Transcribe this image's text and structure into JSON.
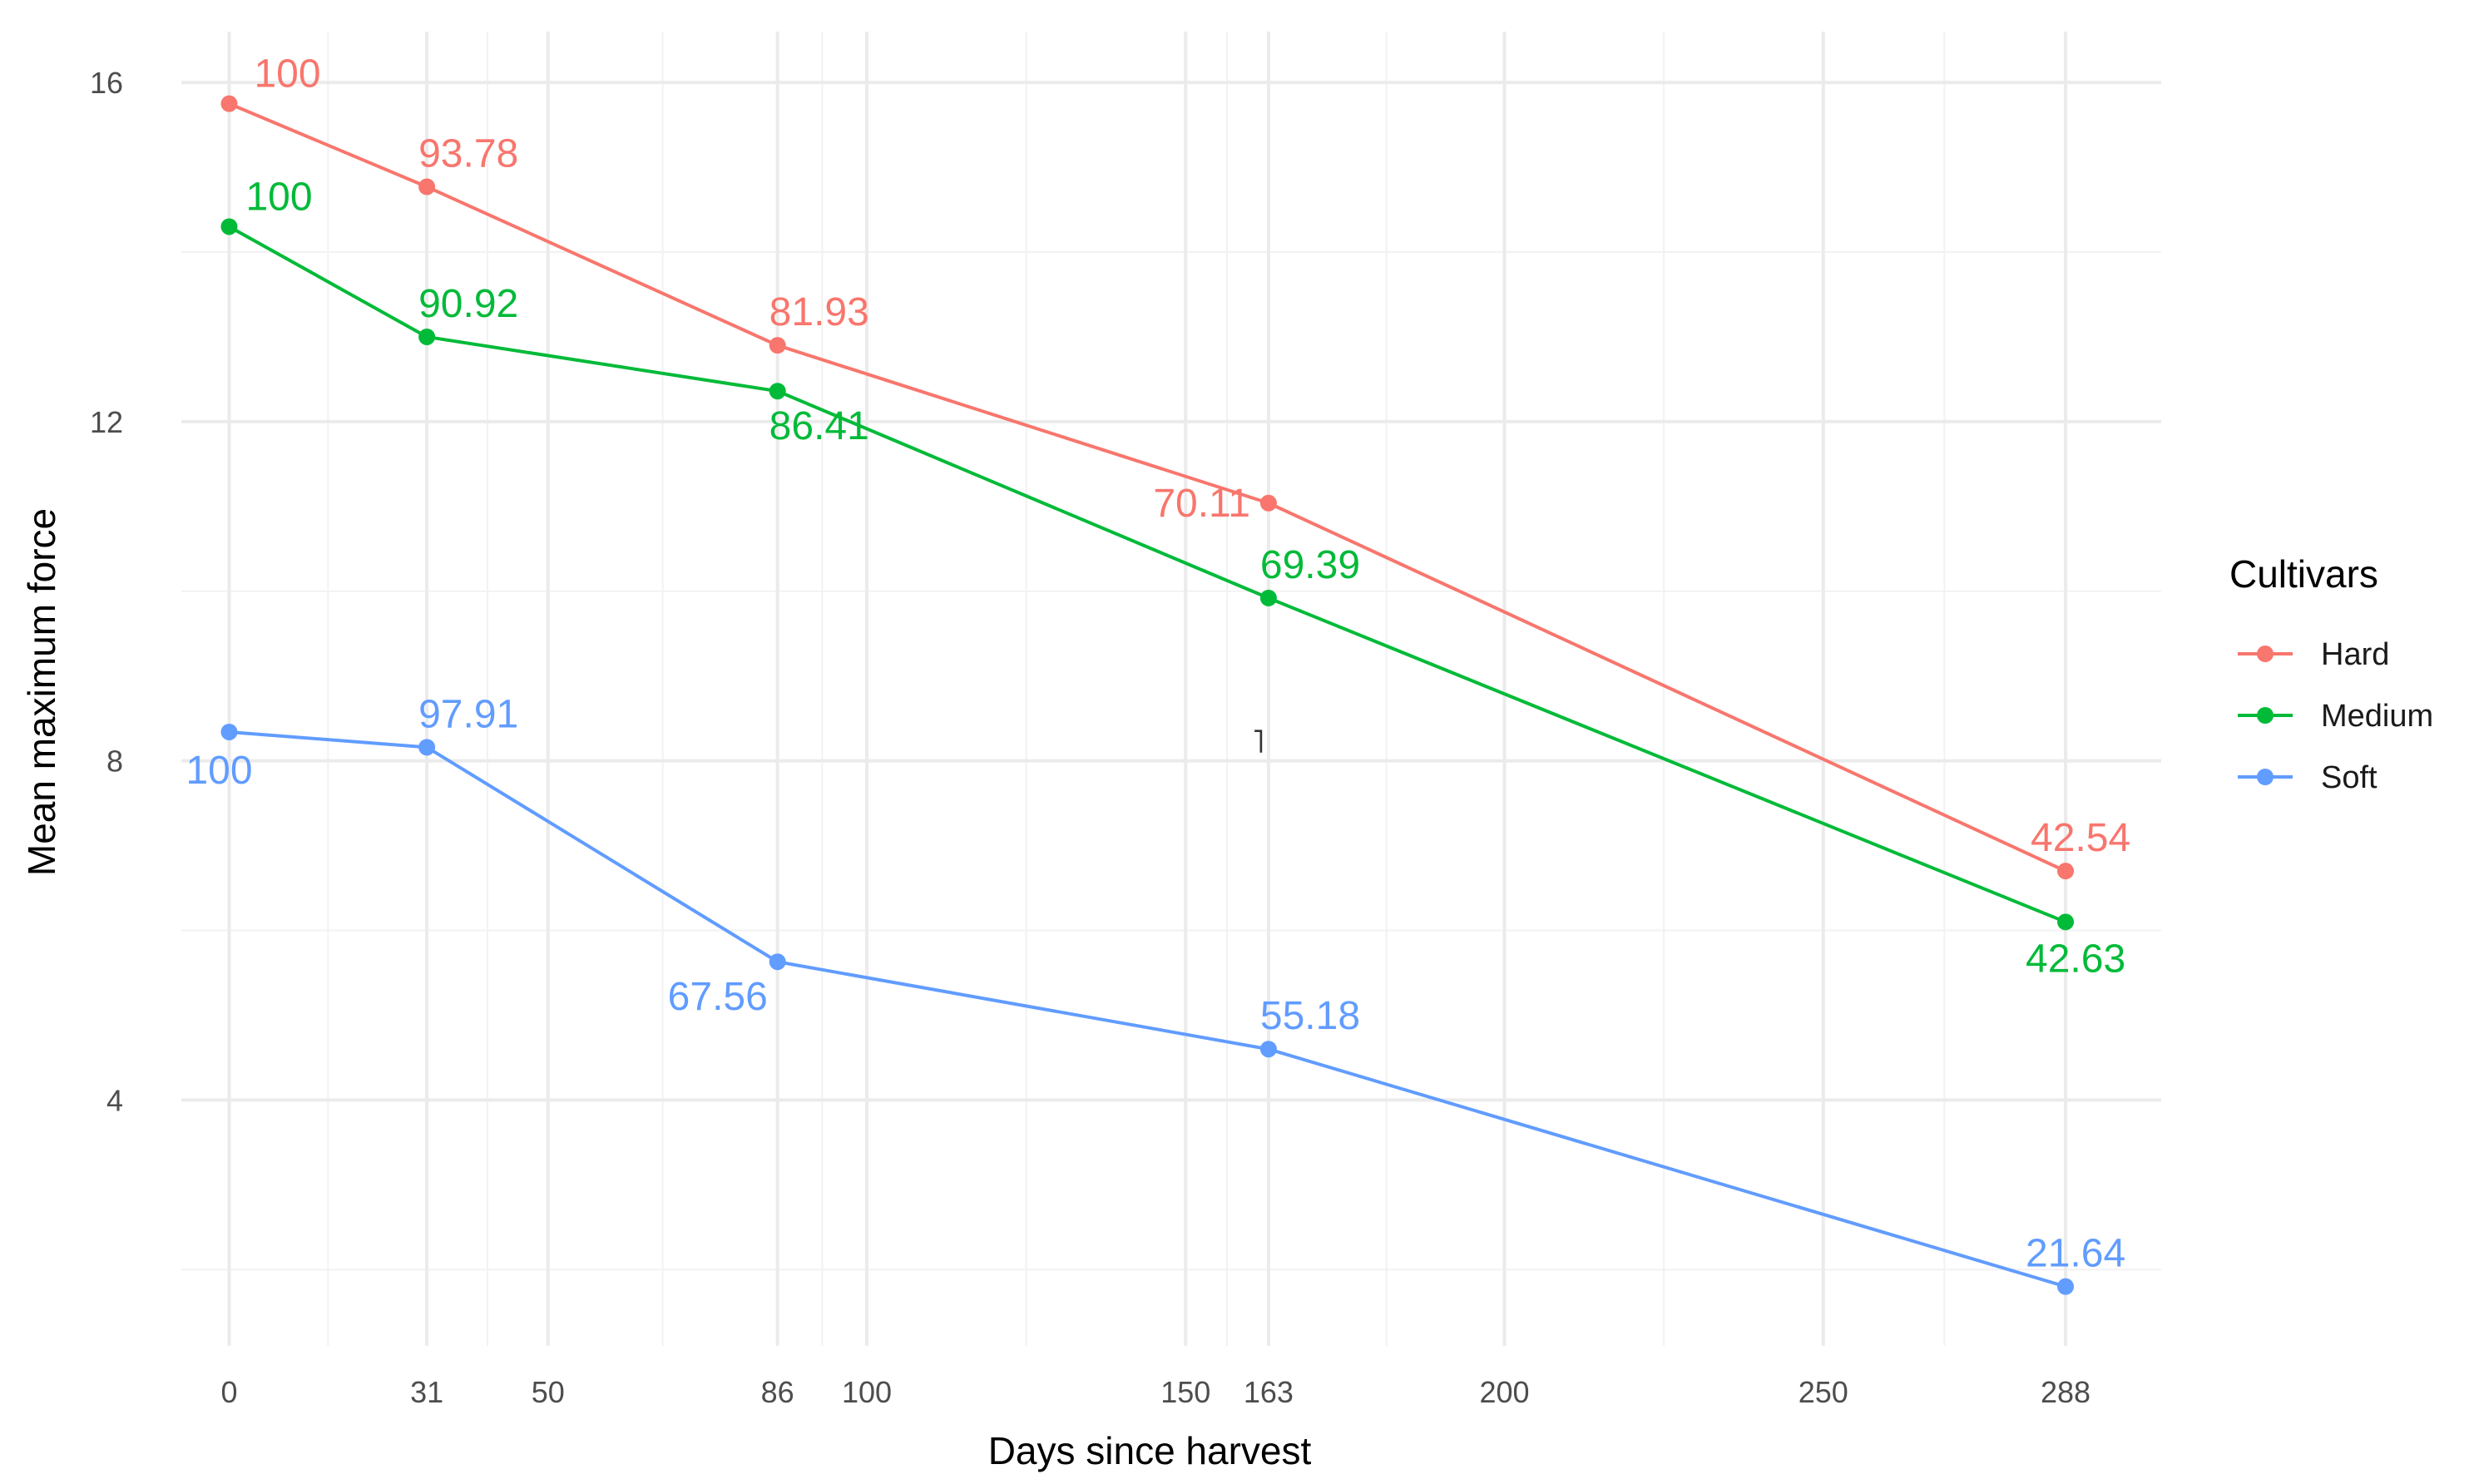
{
  "chart_data": {
    "type": "line",
    "xlabel": "Days since harvest",
    "ylabel": "Mean maximum force",
    "x_ticks": [
      0,
      31,
      50,
      86,
      100,
      150,
      163,
      200,
      250,
      288
    ],
    "y_ticks": [
      4,
      8,
      12,
      16
    ],
    "xlim": [
      -7.5,
      303
    ],
    "ylim": [
      1.1,
      16.6
    ],
    "grid": true,
    "legend": {
      "title": "Cultivars",
      "position": "right",
      "entries": [
        "Hard",
        "Medium",
        "Soft"
      ]
    },
    "x": [
      0,
      31,
      86,
      163,
      288
    ],
    "series": [
      {
        "name": "Hard",
        "color": "#F8766D",
        "values": [
          15.75,
          14.77,
          12.9,
          11.04,
          6.7
        ],
        "labels": [
          "100",
          "93.78",
          "81.93",
          "70.11",
          "42.54"
        ]
      },
      {
        "name": "Medium",
        "color": "#00BA38",
        "values": [
          14.3,
          13.0,
          12.36,
          9.92,
          6.1
        ],
        "labels": [
          "100",
          "90.92",
          "86.41",
          "69.39",
          "42.63"
        ]
      },
      {
        "name": "Soft",
        "color": "#619CFF",
        "values": [
          8.34,
          8.16,
          5.63,
          4.6,
          1.8
        ],
        "labels": [
          "100",
          "97.91",
          "67.56",
          "55.18",
          "21.64"
        ]
      }
    ],
    "annotations": [
      "˥"
    ]
  }
}
